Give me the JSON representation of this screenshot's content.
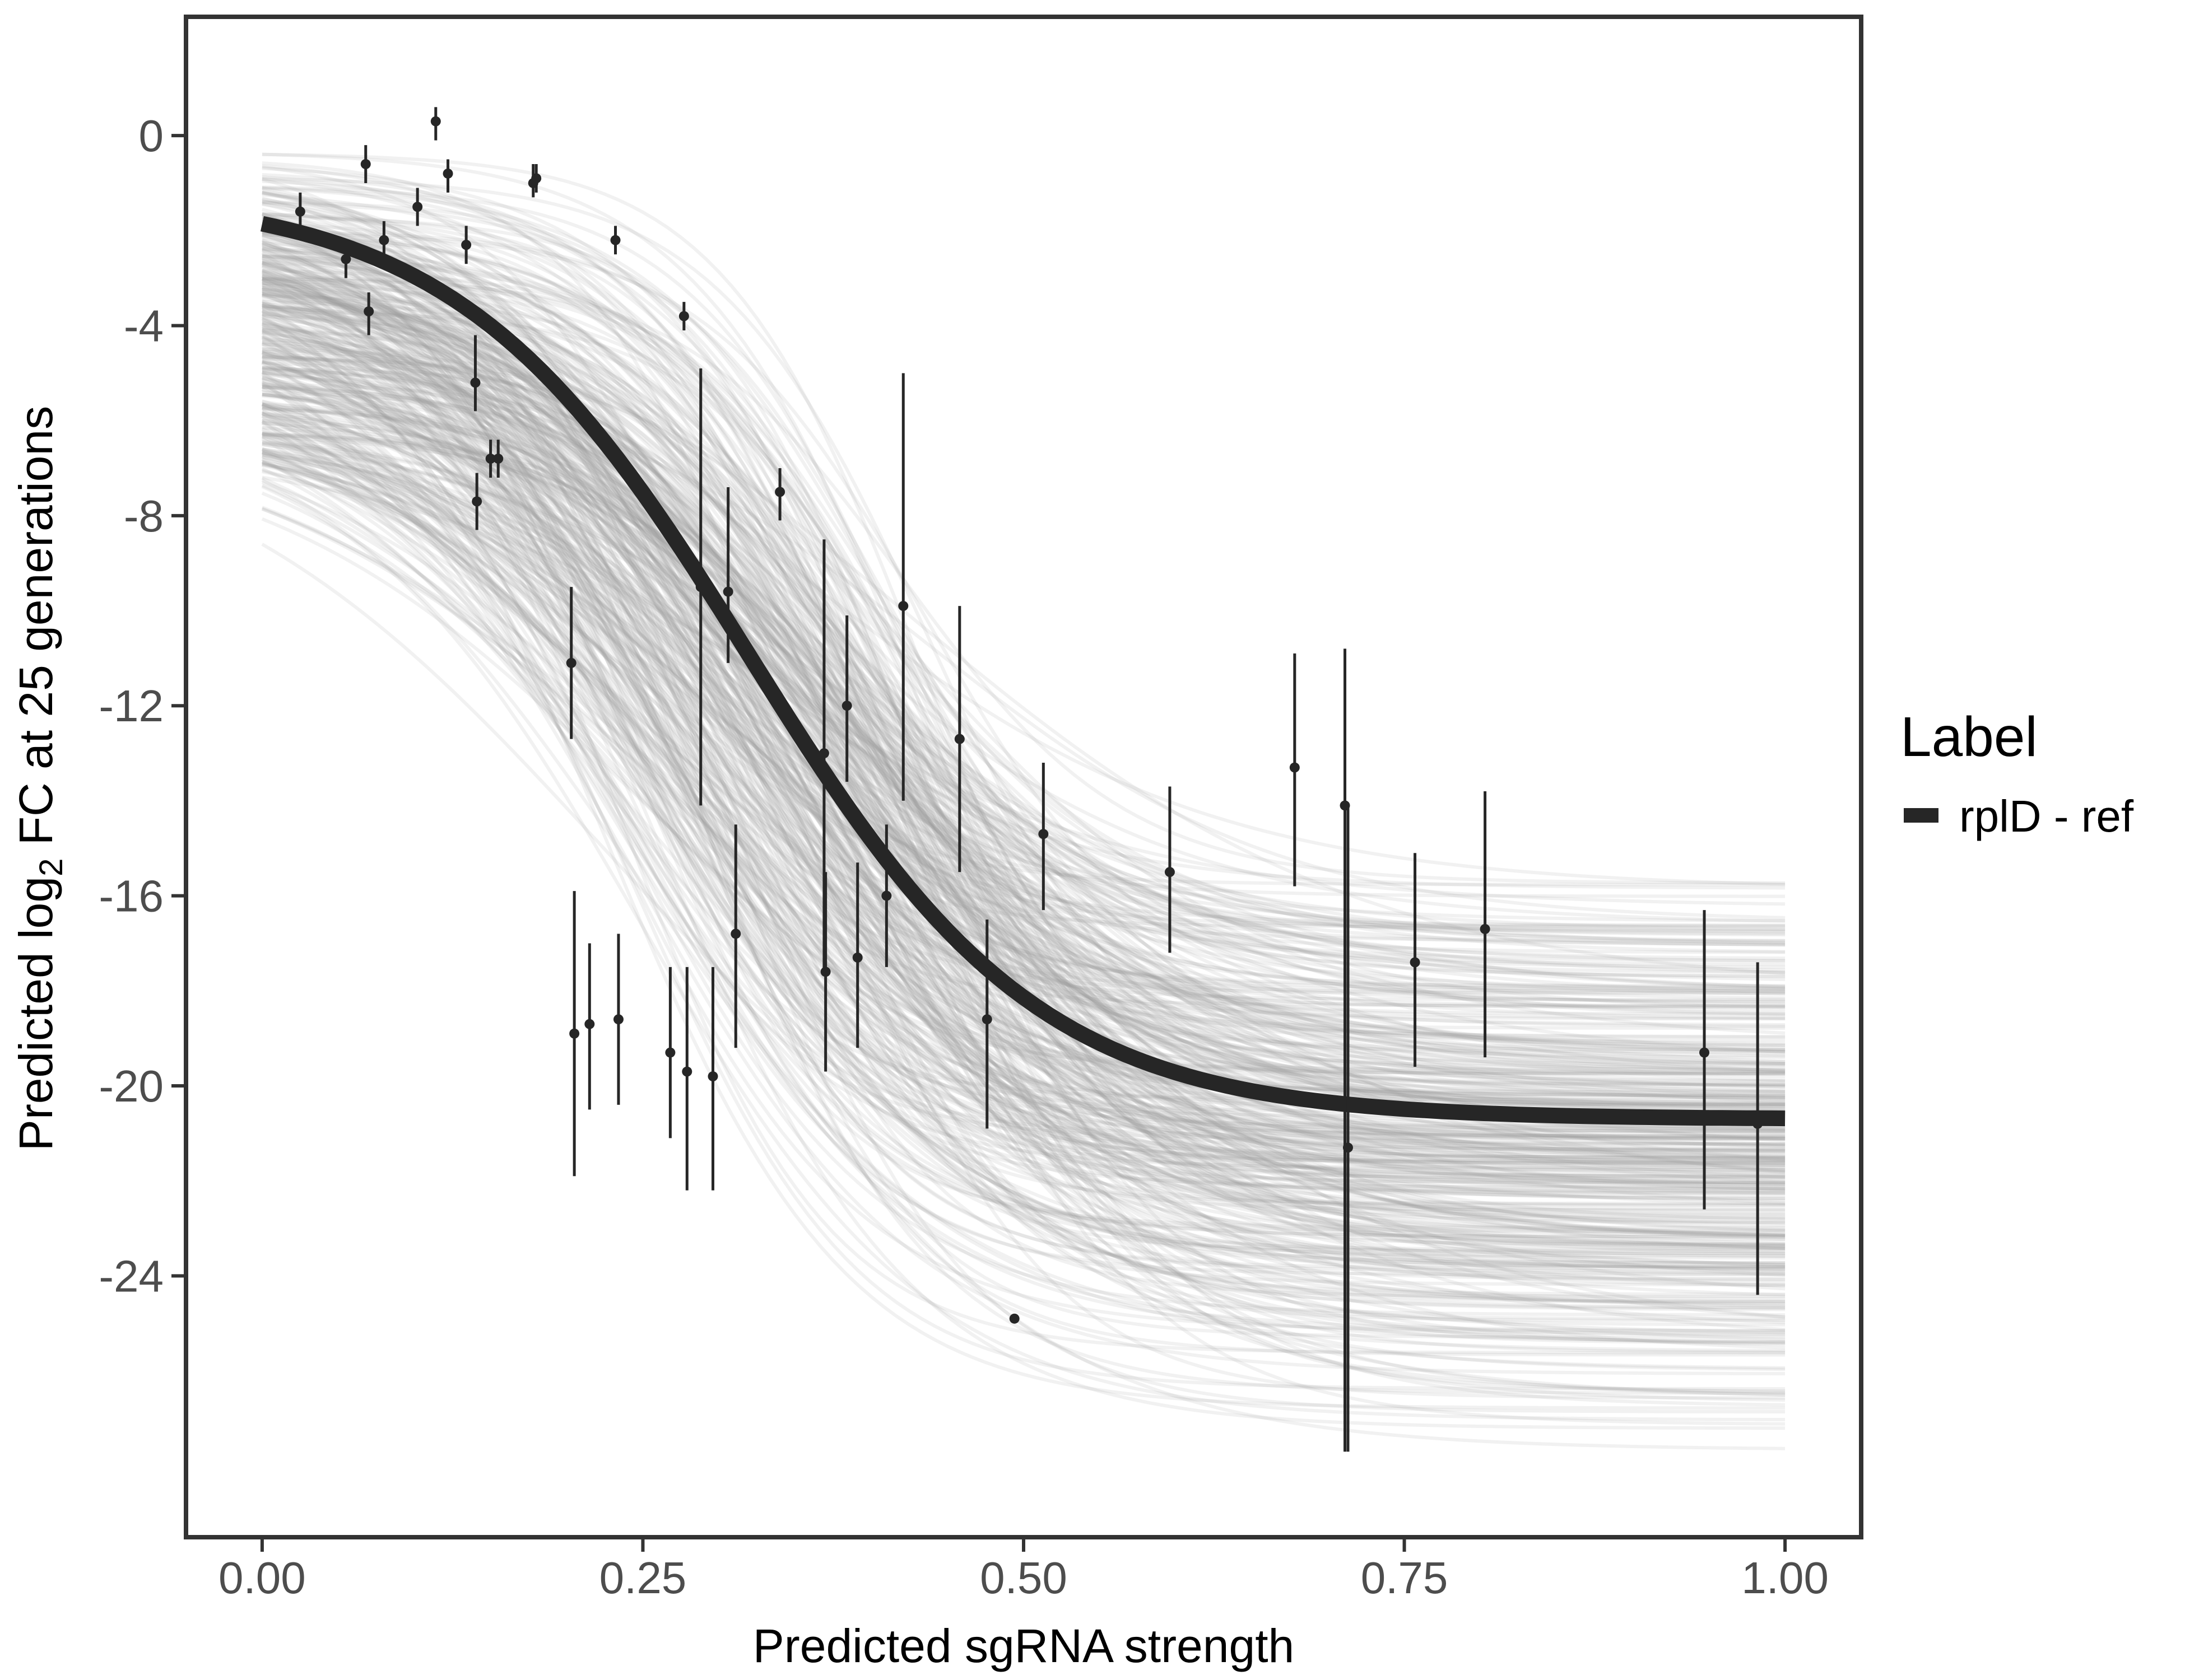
{
  "chart_data": {
    "type": "scatter",
    "xlabel": "Predicted sgRNA strength",
    "ylabel_parts": {
      "before": "Predicted  log",
      "subscript": "2",
      "after": " FC at 25 generations"
    },
    "xlim": [
      -0.05,
      1.05
    ],
    "ylim": [
      -29.5,
      2.5
    ],
    "x_ticks": [
      0.0,
      0.25,
      0.5,
      0.75,
      1.0
    ],
    "x_tick_labels": [
      "0.00",
      "0.25",
      "0.50",
      "0.75",
      "1.00"
    ],
    "y_ticks": [
      0,
      -4,
      -8,
      -12,
      -16,
      -20,
      -24
    ],
    "y_tick_labels": [
      "0",
      "-4",
      "-8",
      "-12",
      "-16",
      "-20",
      "-24"
    ],
    "grid": false,
    "legend": {
      "title": "Label",
      "position": "right",
      "entries": [
        {
          "label": "rplD - ref",
          "color": "#262626"
        }
      ]
    },
    "colors": {
      "fit": "#262626",
      "samples": "#9a9a9a",
      "points": "#262626",
      "frame": "#333333"
    },
    "fit_curve": {
      "name": "rplD - ref",
      "model": "logistic",
      "upper": -1.2,
      "lower": -20.7,
      "midpoint": 0.32,
      "slope": 10.5
    },
    "posterior_samples": {
      "count": 400,
      "opacity": 0.14,
      "upper_range": [
        -6.4,
        -0.3
      ],
      "lower_range": [
        -27.8,
        -15.3
      ],
      "midpoint_range": [
        0.22,
        0.44
      ],
      "slope_range": [
        6.5,
        16.0
      ]
    },
    "points": [
      {
        "x": 0.025,
        "y": -1.6,
        "lo": -2.0,
        "hi": -1.2
      },
      {
        "x": 0.055,
        "y": -2.6,
        "lo": -3.0,
        "hi": -2.2
      },
      {
        "x": 0.068,
        "y": -0.6,
        "lo": -1.0,
        "hi": -0.2
      },
      {
        "x": 0.07,
        "y": -3.7,
        "lo": -4.2,
        "hi": -3.3
      },
      {
        "x": 0.08,
        "y": -2.2,
        "lo": -2.6,
        "hi": -1.8
      },
      {
        "x": 0.102,
        "y": -1.5,
        "lo": -1.9,
        "hi": -1.1
      },
      {
        "x": 0.114,
        "y": 0.3,
        "lo": -0.1,
        "hi": 0.6
      },
      {
        "x": 0.122,
        "y": -0.8,
        "lo": -1.2,
        "hi": -0.5
      },
      {
        "x": 0.134,
        "y": -2.3,
        "lo": -2.7,
        "hi": -1.9
      },
      {
        "x": 0.14,
        "y": -5.2,
        "lo": -5.8,
        "hi": -4.2
      },
      {
        "x": 0.141,
        "y": -7.7,
        "lo": -8.3,
        "hi": -7.1
      },
      {
        "x": 0.15,
        "y": -6.8,
        "lo": -7.2,
        "hi": -6.4
      },
      {
        "x": 0.155,
        "y": -6.8,
        "lo": -7.2,
        "hi": -6.4
      },
      {
        "x": 0.178,
        "y": -1.0,
        "lo": -1.3,
        "hi": -0.6
      },
      {
        "x": 0.18,
        "y": -0.9,
        "lo": -1.2,
        "hi": -0.6
      },
      {
        "x": 0.203,
        "y": -11.1,
        "lo": -12.7,
        "hi": -9.5
      },
      {
        "x": 0.205,
        "y": -18.9,
        "lo": -21.9,
        "hi": -15.9
      },
      {
        "x": 0.215,
        "y": -18.7,
        "lo": -20.5,
        "hi": -17.0
      },
      {
        "x": 0.232,
        "y": -2.2,
        "lo": -2.5,
        "hi": -1.9
      },
      {
        "x": 0.234,
        "y": -18.6,
        "lo": -20.4,
        "hi": -16.8
      },
      {
        "x": 0.268,
        "y": -19.3,
        "lo": -21.1,
        "hi": -17.5
      },
      {
        "x": 0.277,
        "y": -3.8,
        "lo": -4.1,
        "hi": -3.5
      },
      {
        "x": 0.279,
        "y": -19.7,
        "lo": -22.2,
        "hi": -17.5
      },
      {
        "x": 0.288,
        "y": -9.5,
        "lo": -14.1,
        "hi": -4.9
      },
      {
        "x": 0.296,
        "y": -19.8,
        "lo": -22.2,
        "hi": -17.5
      },
      {
        "x": 0.306,
        "y": -9.6,
        "lo": -11.1,
        "hi": -7.4
      },
      {
        "x": 0.311,
        "y": -16.8,
        "lo": -19.2,
        "hi": -14.5
      },
      {
        "x": 0.34,
        "y": -7.5,
        "lo": -8.1,
        "hi": -7.0
      },
      {
        "x": 0.369,
        "y": -13.0,
        "lo": -17.6,
        "hi": -8.5
      },
      {
        "x": 0.37,
        "y": -17.6,
        "lo": -19.7,
        "hi": -15.5
      },
      {
        "x": 0.384,
        "y": -12.0,
        "lo": -13.6,
        "hi": -10.1
      },
      {
        "x": 0.391,
        "y": -17.3,
        "lo": -19.2,
        "hi": -15.3
      },
      {
        "x": 0.41,
        "y": -16.0,
        "lo": -17.5,
        "hi": -14.5
      },
      {
        "x": 0.421,
        "y": -9.9,
        "lo": -14.0,
        "hi": -5.0
      },
      {
        "x": 0.458,
        "y": -12.7,
        "lo": -15.5,
        "hi": -9.9
      },
      {
        "x": 0.476,
        "y": -18.6,
        "lo": -20.9,
        "hi": -16.5
      },
      {
        "x": 0.494,
        "y": -24.9,
        "lo": -24.9,
        "hi": -24.9
      },
      {
        "x": 0.513,
        "y": -14.7,
        "lo": -16.3,
        "hi": -13.2
      },
      {
        "x": 0.596,
        "y": -15.5,
        "lo": -17.2,
        "hi": -13.7
      },
      {
        "x": 0.678,
        "y": -13.3,
        "lo": -15.8,
        "hi": -10.9
      },
      {
        "x": 0.711,
        "y": -14.1,
        "lo": -27.7,
        "hi": -10.8
      },
      {
        "x": 0.713,
        "y": -21.3,
        "lo": -27.7,
        "hi": -14.1
      },
      {
        "x": 0.757,
        "y": -17.4,
        "lo": -19.6,
        "hi": -15.1
      },
      {
        "x": 0.803,
        "y": -16.7,
        "lo": -19.4,
        "hi": -13.8
      },
      {
        "x": 0.947,
        "y": -19.3,
        "lo": -22.6,
        "hi": -16.3
      },
      {
        "x": 0.982,
        "y": -20.8,
        "lo": -24.4,
        "hi": -17.4
      }
    ]
  }
}
